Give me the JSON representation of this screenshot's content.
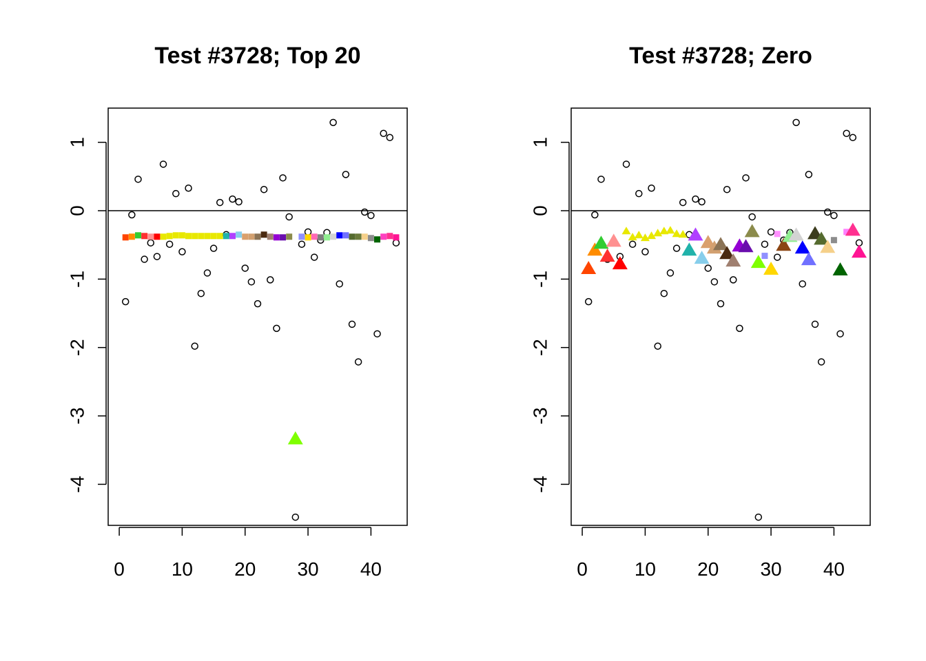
{
  "figure": {
    "background": "#ffffff"
  },
  "chart_data": [
    {
      "type": "scatter",
      "title": "Test #3728; Top 20",
      "xlabel": "",
      "ylabel": "",
      "xlim": [
        0,
        44
      ],
      "ylim": [
        -4.6,
        1.5
      ],
      "xticks": [
        0,
        10,
        20,
        30,
        40
      ],
      "xtick_labels": [
        "0",
        "10",
        "20",
        "30",
        "40"
      ],
      "yticks": [
        -4,
        -3,
        -2,
        -1,
        0,
        1
      ],
      "ytick_labels": [
        "-4",
        "-3",
        "-2",
        "-1",
        "0",
        "1"
      ],
      "grid": false,
      "hline": 0,
      "series": [
        {
          "marker": "open-circle",
          "color": "#000000",
          "x": [
            1,
            2,
            3,
            4,
            5,
            6,
            7,
            8,
            9,
            10,
            11,
            12,
            13,
            14,
            15,
            16,
            17,
            18,
            19,
            20,
            21,
            22,
            23,
            24,
            25,
            26,
            27,
            28,
            29,
            30,
            31,
            32,
            33,
            34,
            35,
            36,
            37,
            38,
            39,
            40,
            41,
            42,
            43,
            44
          ],
          "y": [
            -1.33,
            -0.06,
            0.46,
            -0.71,
            -0.47,
            -0.67,
            0.68,
            -0.49,
            0.25,
            -0.6,
            0.33,
            -1.98,
            -1.21,
            -0.91,
            -0.55,
            0.12,
            -0.35,
            0.17,
            0.13,
            -0.84,
            -1.04,
            -1.36,
            0.31,
            -1.01,
            -1.72,
            0.48,
            -0.09,
            -4.48,
            -0.49,
            -0.31,
            -0.68,
            -0.43,
            -0.32,
            1.29,
            -1.07,
            0.53,
            -1.66,
            -2.21,
            -0.02,
            -0.07,
            -1.8,
            1.13,
            1.07,
            -0.47
          ]
        },
        {
          "marker": "filled-square",
          "x": [
            1,
            2,
            3,
            4,
            5,
            6,
            7,
            8,
            9,
            10,
            11,
            12,
            13,
            14,
            15,
            16,
            17,
            18,
            19,
            20,
            21,
            22,
            23,
            24,
            25,
            26,
            27,
            29,
            30,
            31,
            32,
            33,
            34,
            35,
            36,
            37,
            38,
            39,
            40,
            41,
            42,
            43,
            44
          ],
          "y": [
            -0.39,
            -0.38,
            -0.36,
            -0.37,
            -0.38,
            -0.38,
            -0.38,
            -0.37,
            -0.36,
            -0.36,
            -0.37,
            -0.37,
            -0.37,
            -0.37,
            -0.37,
            -0.37,
            -0.37,
            -0.37,
            -0.35,
            -0.38,
            -0.38,
            -0.38,
            -0.35,
            -0.38,
            -0.39,
            -0.39,
            -0.38,
            -0.38,
            -0.39,
            -0.38,
            -0.39,
            -0.39,
            -0.38,
            -0.36,
            -0.36,
            -0.38,
            -0.38,
            -0.38,
            -0.4,
            -0.42,
            -0.38,
            -0.37,
            -0.39
          ],
          "colors": [
            "#ff4500",
            "#ff8c00",
            "#32cd32",
            "#ff3030",
            "#ff9090",
            "#ff0000",
            "#e8e800",
            "#e8e800",
            "#e8e800",
            "#e8e800",
            "#e8e800",
            "#e8e800",
            "#e8e800",
            "#e8e800",
            "#e8e800",
            "#e8e800",
            "#20b2aa",
            "#b040ff",
            "#87ceeb",
            "#daa06d",
            "#d2a070",
            "#8b7355",
            "#4a2a10",
            "#a08070",
            "#9400d3",
            "#6a0dad",
            "#8b8b4b",
            "#9090ff",
            "#ffd700",
            "#ff69b4",
            "#7f7f7f",
            "#90ee90",
            "#d3d3d3",
            "#0000ff",
            "#7070ff",
            "#556b2f",
            "#6b7b3b",
            "#f5d08a",
            "#8c8c8c",
            "#006400",
            "#ff40c0",
            "#ff3090",
            "#ff1493"
          ]
        },
        {
          "marker": "filled-triangle",
          "color": "#7fff00",
          "x": [
            28
          ],
          "y": [
            -3.34
          ]
        }
      ]
    },
    {
      "type": "scatter",
      "title": "Test #3728; Zero",
      "xlabel": "",
      "ylabel": "",
      "xlim": [
        0,
        44
      ],
      "ylim": [
        -4.6,
        1.5
      ],
      "xticks": [
        0,
        10,
        20,
        30,
        40
      ],
      "xtick_labels": [
        "0",
        "10",
        "20",
        "30",
        "40"
      ],
      "yticks": [
        -4,
        -3,
        -2,
        -1,
        0,
        1
      ],
      "ytick_labels": [
        "-4",
        "-3",
        "-2",
        "-1",
        "0",
        "1"
      ],
      "grid": false,
      "hline": 0,
      "series": [
        {
          "marker": "open-circle",
          "color": "#000000",
          "x": [
            1,
            2,
            3,
            4,
            5,
            6,
            7,
            8,
            9,
            10,
            11,
            12,
            13,
            14,
            15,
            16,
            17,
            18,
            19,
            20,
            21,
            22,
            23,
            24,
            25,
            26,
            27,
            28,
            29,
            30,
            31,
            32,
            33,
            34,
            35,
            36,
            37,
            38,
            39,
            40,
            41,
            42,
            43,
            44
          ],
          "y": [
            -1.33,
            -0.06,
            0.46,
            -0.71,
            -0.47,
            -0.67,
            0.68,
            -0.49,
            0.25,
            -0.6,
            0.33,
            -1.98,
            -1.21,
            -0.91,
            -0.55,
            0.12,
            -0.35,
            0.17,
            0.13,
            -0.84,
            -1.04,
            -1.36,
            0.31,
            -1.01,
            -1.72,
            0.48,
            -0.09,
            -4.48,
            -0.49,
            -0.31,
            -0.68,
            -0.43,
            -0.32,
            1.29,
            -1.07,
            0.53,
            -1.66,
            -2.21,
            -0.02,
            -0.07,
            -1.8,
            1.13,
            1.07,
            -0.47
          ]
        },
        {
          "marker": "filled-square",
          "x": [
            29,
            31,
            40,
            42
          ],
          "y": [
            -0.66,
            -0.34,
            -0.43,
            -0.31
          ],
          "colors": [
            "#9090ff",
            "#ff90ff",
            "#8c8c8c",
            "#ff80ff"
          ]
        },
        {
          "marker": "filled-triangle-small",
          "x": [
            7,
            8,
            9,
            10,
            11,
            12,
            13,
            14,
            15,
            16
          ],
          "y": [
            -0.3,
            -0.39,
            -0.36,
            -0.4,
            -0.37,
            -0.33,
            -0.3,
            -0.29,
            -0.34,
            -0.35
          ],
          "colors": [
            "#e8e800",
            "#e8e800",
            "#e8e800",
            "#e8e800",
            "#e8e800",
            "#e8e800",
            "#e8e800",
            "#e8e800",
            "#e8e800",
            "#e8e800"
          ]
        },
        {
          "marker": "filled-triangle",
          "x": [
            1,
            2,
            3,
            4,
            5,
            6,
            17,
            18,
            19,
            20,
            21,
            22,
            23,
            24,
            25,
            26,
            27,
            28,
            30,
            32,
            33,
            34,
            35,
            36,
            37,
            38,
            39,
            41,
            43,
            44
          ],
          "y": [
            -0.85,
            -0.58,
            -0.48,
            -0.67,
            -0.45,
            -0.78,
            -0.58,
            -0.36,
            -0.7,
            -0.47,
            -0.55,
            -0.5,
            -0.63,
            -0.74,
            -0.52,
            -0.53,
            -0.31,
            -0.76,
            -0.86,
            -0.51,
            -0.38,
            -0.36,
            -0.55,
            -0.72,
            -0.34,
            -0.42,
            -0.54,
            -0.87,
            -0.29,
            -0.61
          ],
          "colors": [
            "#ff4500",
            "#ff8c00",
            "#32cd32",
            "#ff3030",
            "#ff9090",
            "#ff0000",
            "#20b2aa",
            "#b040ff",
            "#87ceeb",
            "#daa06d",
            "#d2a070",
            "#8b7355",
            "#4a2a10",
            "#a08070",
            "#9400d3",
            "#6a0dad",
            "#8b8b4b",
            "#7fff00",
            "#ffd700",
            "#8b4513",
            "#90ee90",
            "#d3d3d3",
            "#0000ff",
            "#7070ff",
            "#3c3c1e",
            "#556b2f",
            "#f5d08a",
            "#006400",
            "#ff3090",
            "#ff1493"
          ]
        }
      ]
    }
  ]
}
